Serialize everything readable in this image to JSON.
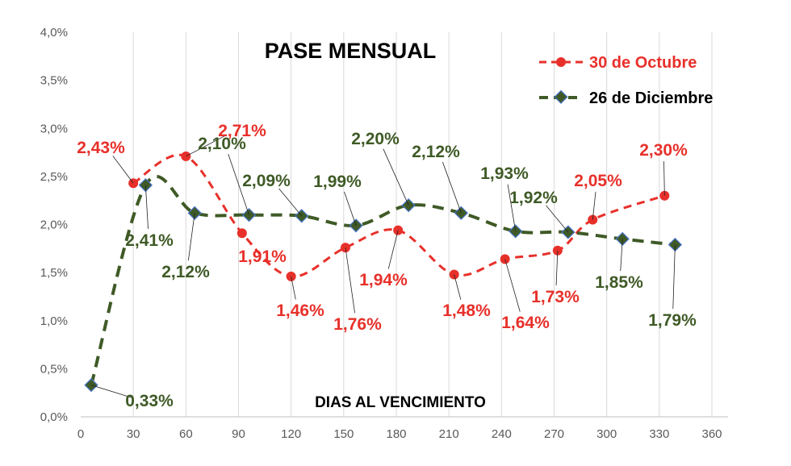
{
  "chart_data": {
    "type": "line",
    "title": "PASE MENSUAL",
    "xlabel": "DIAS AL VENCIMIENTO",
    "ylabel": "",
    "xlim": [
      0,
      360
    ],
    "ylim": [
      0,
      4.0
    ],
    "x_ticks": [
      "0",
      "30",
      "60",
      "90",
      "120",
      "150",
      "180",
      "210",
      "240",
      "270",
      "300",
      "330",
      "360"
    ],
    "y_ticks": [
      "0,0%",
      "0,5%",
      "1,0%",
      "1,5%",
      "2,0%",
      "2,5%",
      "3,0%",
      "3,5%",
      "4,0%"
    ],
    "grid": "vertical",
    "legend_position": "top-right",
    "series": [
      {
        "name": "30 de Octubre",
        "color": "#e8302a",
        "marker": "circle",
        "line_style": "dashed-smooth",
        "x": [
          30,
          60,
          92,
          120,
          151,
          181,
          213,
          242,
          272,
          292,
          333
        ],
        "values": [
          2.43,
          2.71,
          1.91,
          1.46,
          1.76,
          1.94,
          1.48,
          1.64,
          1.73,
          2.05,
          2.3
        ],
        "labels": [
          "2,43%",
          "2,71%",
          "1,91%",
          "1,46%",
          "1,76%",
          "1,94%",
          "1,48%",
          "1,64%",
          "1,73%",
          "2,05%",
          "2,30%"
        ]
      },
      {
        "name": "26 de Diciembre",
        "color": "#3f5a26",
        "marker": "diamond",
        "line_style": "dashed-smooth",
        "x": [
          6,
          37,
          65,
          96,
          126,
          157,
          187,
          217,
          248,
          278,
          309,
          339
        ],
        "values": [
          0.33,
          2.41,
          2.12,
          2.1,
          2.09,
          1.99,
          2.2,
          2.12,
          1.93,
          1.92,
          1.85,
          1.79
        ],
        "labels": [
          "0,33%",
          "2,41%",
          "2,12%",
          "2,10%",
          "2,09%",
          "1,99%",
          "2,20%",
          "2,12%",
          "1,93%",
          "1,92%",
          "1,85%",
          "1,79%"
        ]
      }
    ]
  }
}
